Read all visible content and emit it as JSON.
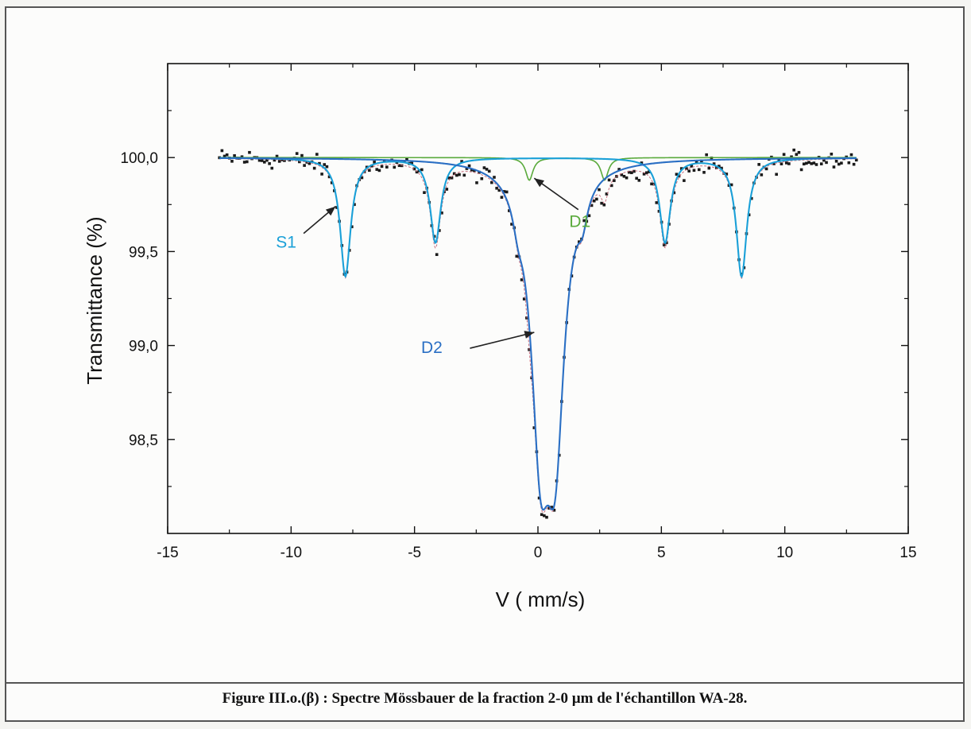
{
  "caption": "Figure III.o.(β) : Spectre Mössbauer de la fraction 2-0 µm de l'échantillon WA-28.",
  "chart_data": {
    "type": "scatter",
    "xlabel": "V ( mm/s)",
    "ylabel": "Transmittance (%)",
    "xlim": [
      -15,
      15
    ],
    "ylim": [
      98.0,
      100.5
    ],
    "x_ticks": [
      -15,
      -10,
      -5,
      0,
      5,
      10,
      15
    ],
    "x_tick_labels": [
      "-15",
      "-10",
      "-5",
      "0",
      "5",
      "10",
      "15"
    ],
    "y_ticks": [
      98.5,
      99.0,
      99.5,
      100.0
    ],
    "y_tick_labels": [
      "98,5",
      "99,0",
      "99,5",
      "100,0"
    ],
    "grid": false,
    "x_range_data": [
      -12.9,
      12.9
    ],
    "components": [
      {
        "name": "S1",
        "color": "#1aa0d8",
        "baseline": 100.0,
        "peaks": [
          {
            "pos": -7.8,
            "depth": 0.63,
            "hwhm": 0.26
          },
          {
            "pos": -4.15,
            "depth": 0.45,
            "hwhm": 0.26
          },
          {
            "pos": 5.15,
            "depth": 0.45,
            "hwhm": 0.26
          },
          {
            "pos": 8.25,
            "depth": 0.63,
            "hwhm": 0.26
          }
        ]
      },
      {
        "name": "D1",
        "color": "#5aaa3c",
        "baseline": 100.0,
        "peaks": [
          {
            "pos": -0.35,
            "depth": 0.12,
            "hwhm": 0.18
          },
          {
            "pos": 2.7,
            "depth": 0.12,
            "hwhm": 0.18
          }
        ]
      },
      {
        "name": "D2",
        "color": "#2a6fc4",
        "baseline": 100.0,
        "peaks": [
          {
            "pos": 0.1,
            "depth": 1.33,
            "hwhm": 0.45
          },
          {
            "pos": 0.7,
            "depth": 1.33,
            "hwhm": 0.45
          },
          {
            "pos": -0.8,
            "depth": 0.12,
            "hwhm": 0.25
          },
          {
            "pos": 1.8,
            "depth": 0.15,
            "hwhm": 0.25
          }
        ]
      }
    ],
    "annotations": [
      {
        "text": "S1",
        "color": "#1aa0d8",
        "label_at": [
          -10.2,
          99.52
        ],
        "arrow_to": [
          -8.2,
          99.74
        ]
      },
      {
        "text": "D1",
        "color": "#5aaa3c",
        "label_at": [
          1.7,
          99.63
        ],
        "arrow_to": [
          -0.15,
          99.89
        ]
      },
      {
        "text": "D2",
        "color": "#2a6fc4",
        "label_at": [
          -4.3,
          98.96
        ],
        "arrow_to": [
          -0.15,
          99.07
        ]
      }
    ],
    "experimental_color": "#1a1a1a",
    "envelope_color": "#c86e7e"
  }
}
